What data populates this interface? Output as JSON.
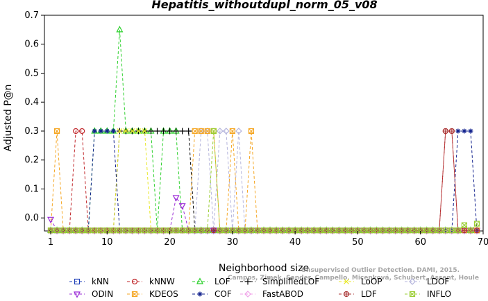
{
  "chart_data": {
    "type": "line",
    "title": "Hepatitis_withoutdupl_norm_05_v08",
    "xlabel": "Neighborhood size",
    "ylabel": "Adjusted P@n",
    "xlim": [
      0,
      70
    ],
    "ylim": [
      -0.045,
      0.7
    ],
    "xticks": [
      1,
      10,
      20,
      30,
      40,
      50,
      60,
      70
    ],
    "yticks": [
      0.0,
      0.1,
      0.2,
      0.3,
      0.4,
      0.5,
      0.6,
      0.7
    ],
    "ytick_labels": [
      "0.0",
      "0.1",
      "0.2",
      "0.3",
      "0.4",
      "0.5",
      "0.6",
      "0.7"
    ],
    "grid": false,
    "legend_position": "bottom",
    "baseline": -0.043,
    "x": [
      1,
      2,
      3,
      4,
      5,
      6,
      7,
      8,
      9,
      10,
      11,
      12,
      13,
      14,
      15,
      16,
      17,
      18,
      19,
      20,
      21,
      22,
      23,
      24,
      25,
      26,
      27,
      28,
      29,
      30,
      31,
      32,
      33,
      34,
      35,
      36,
      37,
      38,
      39,
      40,
      41,
      42,
      43,
      44,
      45,
      46,
      47,
      48,
      49,
      50,
      51,
      52,
      53,
      54,
      55,
      56,
      57,
      58,
      59,
      60,
      61,
      62,
      63,
      64,
      65,
      66,
      67,
      68,
      69
    ],
    "series": [
      {
        "name": "kNN",
        "color": "#1f3fb8",
        "marker": "square",
        "values": {
          "default": -0.043
        }
      },
      {
        "name": "kNNW",
        "color": "#c0262a",
        "marker": "circle",
        "values": {
          "default": -0.043,
          "5": 0.3,
          "6": 0.3,
          "64": 0.3,
          "65": 0.3
        }
      },
      {
        "name": "LOF",
        "color": "#2ad02a",
        "marker": "triangle-up",
        "values": {
          "default": -0.043,
          "8": 0.3,
          "9": 0.3,
          "10": 0.3,
          "11": 0.3,
          "12": 0.65,
          "13": 0.3,
          "14": 0.3,
          "15": 0.3,
          "16": 0.3,
          "17": 0.3,
          "19": 0.3,
          "20": 0.3,
          "21": 0.3
        }
      },
      {
        "name": "SimplifiedLOF",
        "color": "#000000",
        "marker": "plus",
        "values": {
          "default": -0.043,
          "12": 0.3,
          "13": 0.3,
          "14": 0.3,
          "15": 0.3,
          "16": 0.3,
          "17": 0.3,
          "18": 0.3,
          "19": 0.3,
          "20": 0.3,
          "21": 0.3,
          "22": 0.3,
          "23": 0.3
        }
      },
      {
        "name": "LoOP",
        "color": "#e8e828",
        "marker": "x",
        "values": {
          "default": -0.043,
          "12": 0.3,
          "13": 0.3,
          "14": 0.3,
          "15": 0.3,
          "16": 0.3
        }
      },
      {
        "name": "LDOF",
        "color": "#b4b4dc",
        "marker": "diamond",
        "values": {
          "default": -0.043,
          "25": 0.3,
          "26": 0.3,
          "28": 0.3,
          "29": 0.3,
          "31": 0.3
        }
      },
      {
        "name": "ODIN",
        "color": "#9a2bd6",
        "marker": "triangle-down",
        "values": {
          "default": -0.043,
          "1": -0.005,
          "21": 0.07,
          "22": 0.042
        }
      },
      {
        "name": "KDEOS",
        "color": "#f5a623",
        "marker": "square-x",
        "values": {
          "default": -0.043,
          "2": 0.3,
          "24": 0.3,
          "25": 0.3,
          "26": 0.3,
          "27": 0.3,
          "30": 0.3,
          "33": 0.3
        }
      },
      {
        "name": "COF",
        "color": "#0f1f8c",
        "marker": "asterisk",
        "values": {
          "default": -0.043,
          "8": 0.3,
          "9": 0.3,
          "10": 0.3,
          "11": 0.3,
          "66": 0.3,
          "67": 0.3,
          "68": 0.3
        }
      },
      {
        "name": "FastABOD",
        "color": "#f0a0e8",
        "marker": "diamond",
        "values": {
          "default": -0.043
        }
      },
      {
        "name": "LDF",
        "color": "#a83232",
        "marker": "circle-plus",
        "values": {
          "default": -0.043,
          "64": 0.3,
          "65": 0.3
        }
      },
      {
        "name": "INFLO",
        "color": "#9acd32",
        "marker": "square-x",
        "values": {
          "default": -0.043,
          "27": 0.3,
          "67": -0.025,
          "69": -0.02
        }
      }
    ],
    "watermark": [
      "Unsupervised Outlier Detection. DAMI, 2015.",
      "Campos, Zimek, Sander, Campello, Micenková, Schubert, Assent, Houle"
    ]
  }
}
